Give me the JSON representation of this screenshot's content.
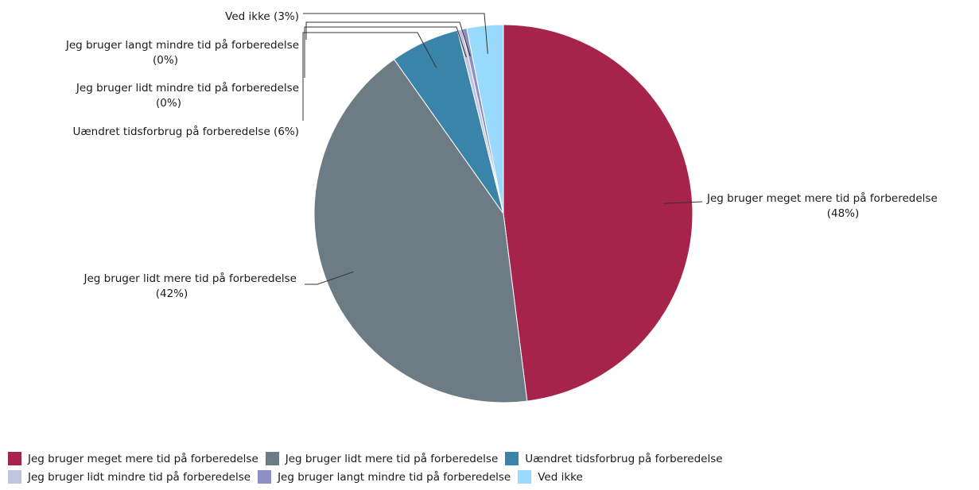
{
  "chart_data": {
    "type": "pie",
    "title": "",
    "slices": [
      {
        "name": "Jeg bruger meget mere tid på forberedelse",
        "value": 48,
        "label": "(48%)",
        "color": "#a6234b"
      },
      {
        "name": "Jeg bruger lidt mere tid på forberedelse",
        "value": 42.2,
        "label": "(42%)",
        "color": "#6d7b84"
      },
      {
        "name": "Uændret tidsforbrug på forberedelse",
        "value": 5.9,
        "label": "(6%)",
        "color": "#3a84aa"
      },
      {
        "name": "Jeg bruger lidt mindre tid på forberedelse",
        "value": 0.4,
        "label": "(0%)",
        "color": "#c0c4dc"
      },
      {
        "name": "Jeg bruger langt mindre tid på forberedelse",
        "value": 0.4,
        "label": "(0%)",
        "color": "#8e8fc2"
      },
      {
        "name": "Ved ikke",
        "value": 3.1,
        "label": "(3%)",
        "color": "#99d9fb"
      }
    ],
    "legend_position": "bottom-left"
  }
}
